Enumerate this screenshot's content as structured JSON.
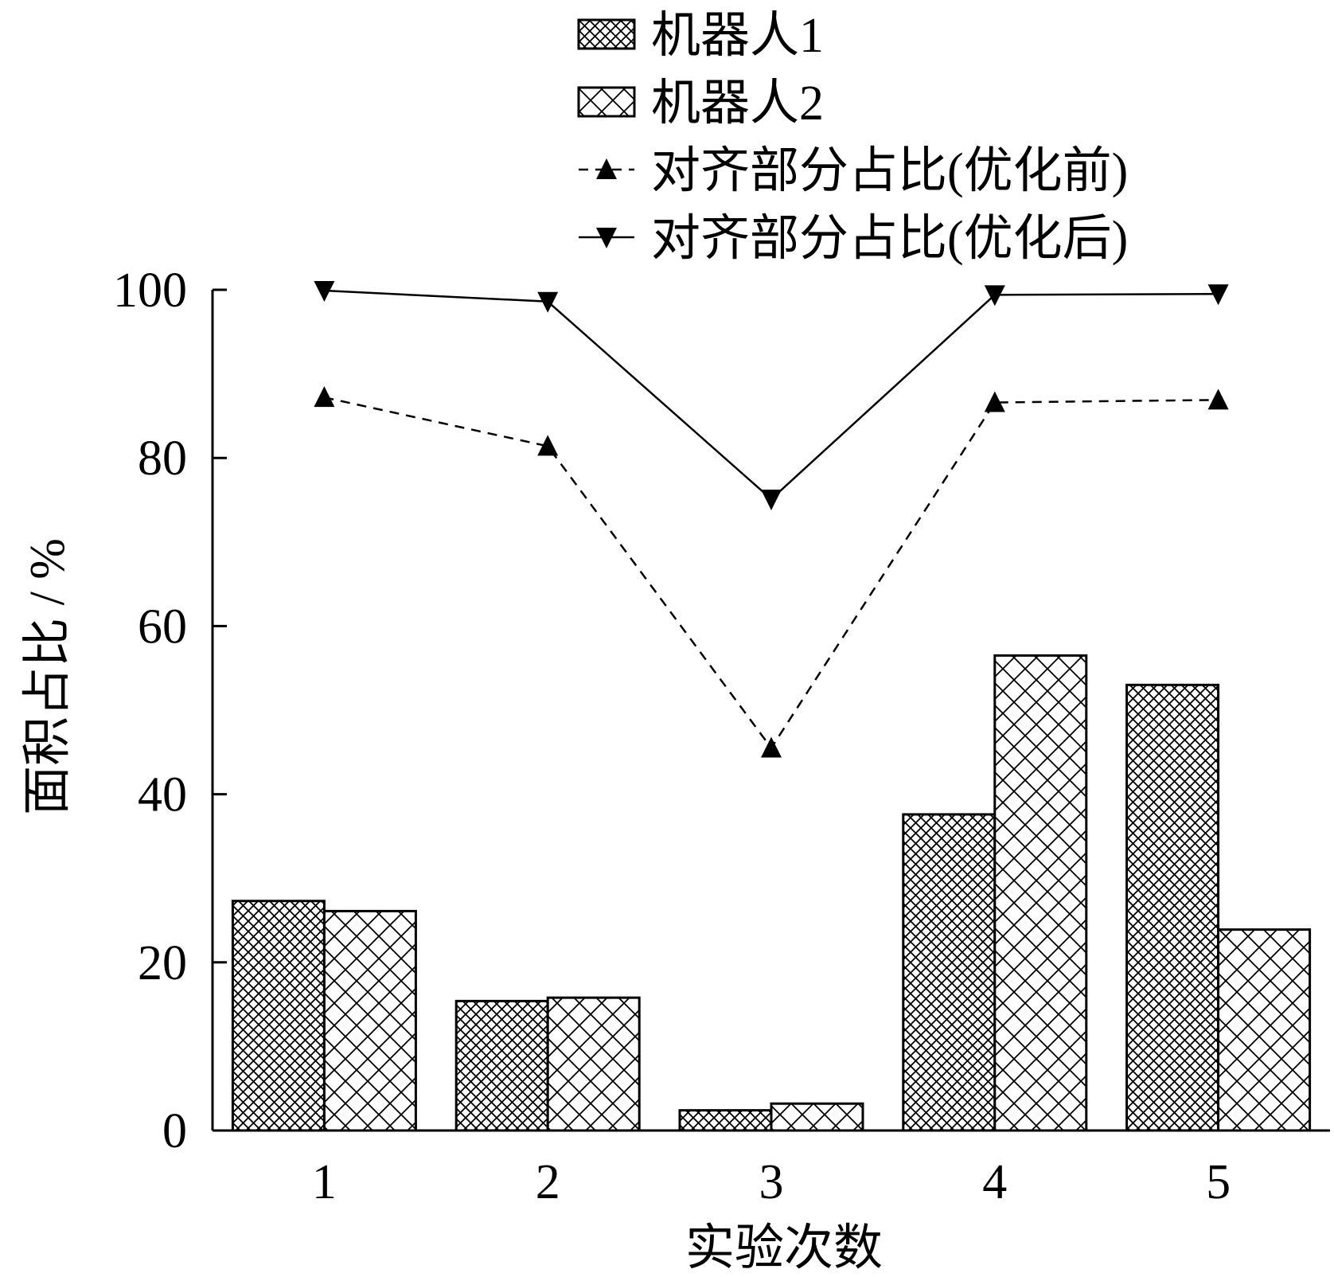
{
  "chart_data": {
    "type": "bar",
    "categories": [
      "1",
      "2",
      "3",
      "4",
      "5"
    ],
    "xlabel": "实验次数",
    "ylabel": "面积占比 / %",
    "ylim": [
      0,
      100
    ],
    "yticks": [
      "0",
      "20",
      "40",
      "60",
      "80",
      "100"
    ],
    "grid": false,
    "legend_position": "top",
    "series": [
      {
        "name": "机器人1",
        "kind": "bar",
        "pattern": "dense-crosshatch",
        "values": [
          27.3,
          15.4,
          2.4,
          37.6,
          53.0
        ]
      },
      {
        "name": "机器人2",
        "kind": "bar",
        "pattern": "sparse-crosshatch",
        "values": [
          26.1,
          15.8,
          3.2,
          56.5,
          23.9
        ]
      },
      {
        "name": "对齐部分占比(优化前)",
        "kind": "line",
        "line_style": "dashed",
        "marker": "triangle-up",
        "values": [
          87.2,
          81.4,
          45.5,
          86.6,
          86.9
        ]
      },
      {
        "name": "对齐部分占比(优化后)",
        "kind": "line",
        "line_style": "solid",
        "marker": "triangle-down",
        "values": [
          99.9,
          98.6,
          75.1,
          99.4,
          99.5
        ]
      }
    ],
    "colors": {
      "ink": "#000000",
      "background": "#ffffff"
    }
  }
}
